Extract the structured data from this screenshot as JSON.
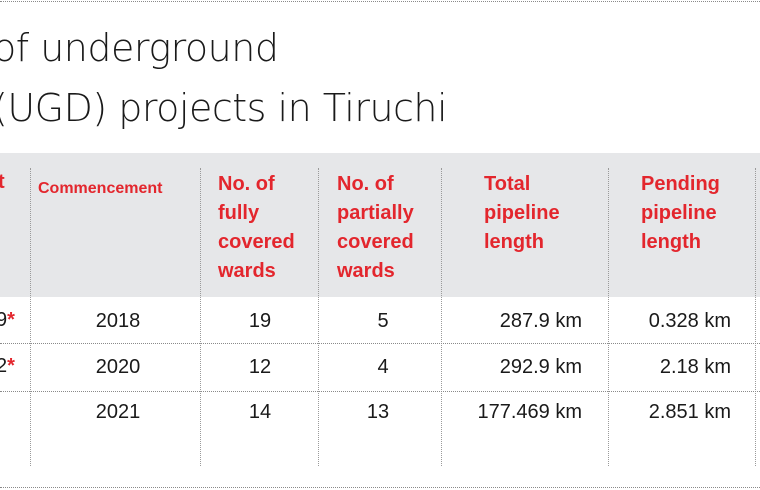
{
  "title": {
    "line1": "of underground",
    "line2": "(UGD) projects in Tiruchi"
  },
  "colors": {
    "header_text": "#e3262d",
    "header_bg": "#e6e7e9",
    "body_text": "#1a1a1a"
  },
  "table": {
    "partial_first_column": {
      "header_fragment": "t",
      "header_fragment_2": ")",
      "rows": [
        "9",
        "2",
        ""
      ],
      "asterisk": "*"
    },
    "headers": [
      "Commencement",
      "No. of\nfully\ncovered\nwards",
      "No. of\npartially\ncovered\nwards",
      "Total\npipeline\nlength",
      "Pending\npipeline\nlength"
    ],
    "rows": [
      [
        "2018",
        "19",
        "5",
        "287.9 km",
        "0.328 km"
      ],
      [
        "2020",
        "12",
        "4",
        "292.9 km",
        "2.18 km"
      ],
      [
        "2021",
        "14",
        "13",
        "177.469 km",
        "2.851 km"
      ]
    ]
  }
}
